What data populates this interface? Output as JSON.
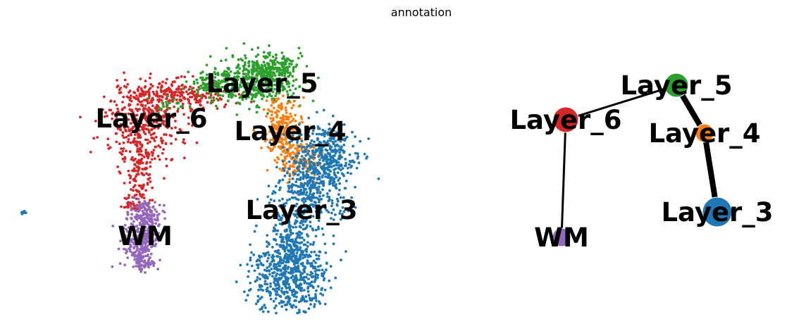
{
  "title": "annotation",
  "chart_data": [
    {
      "type": "scatter",
      "kind": "umap-embedding",
      "axes_visible": false,
      "grid": false,
      "legend": "on data",
      "clusters": [
        {
          "name": "Layer_3",
          "color": "#1f77b4",
          "label": "Layer_3"
        },
        {
          "name": "Layer_4",
          "color": "#ff7f0e",
          "label": "Layer_4"
        },
        {
          "name": "Layer_5",
          "color": "#2ca02c",
          "label": "Layer_5"
        },
        {
          "name": "Layer_6",
          "color": "#d62728",
          "label": "Layer_6"
        },
        {
          "name": "WM",
          "color": "#9467bd",
          "label": "WM"
        }
      ]
    },
    {
      "type": "network",
      "kind": "paga",
      "axes_visible": false,
      "nodes": [
        {
          "id": "Layer_5",
          "label": "Layer_5",
          "color": "#2ca02c"
        },
        {
          "id": "Layer_6",
          "label": "Layer_6",
          "color": "#d62728"
        },
        {
          "id": "Layer_4",
          "label": "Layer_4",
          "color": "#ff7f0e"
        },
        {
          "id": "Layer_3",
          "label": "Layer_3",
          "color": "#1f77b4"
        },
        {
          "id": "WM",
          "label": "WM",
          "color": "#9467bd"
        }
      ],
      "edges": [
        {
          "source": "Layer_6",
          "target": "Layer_5",
          "weight": "medium"
        },
        {
          "source": "Layer_5",
          "target": "Layer_4",
          "weight": "heavy"
        },
        {
          "source": "Layer_4",
          "target": "Layer_3",
          "weight": "heavy"
        },
        {
          "source": "Layer_6",
          "target": "WM",
          "weight": "medium"
        }
      ]
    }
  ]
}
